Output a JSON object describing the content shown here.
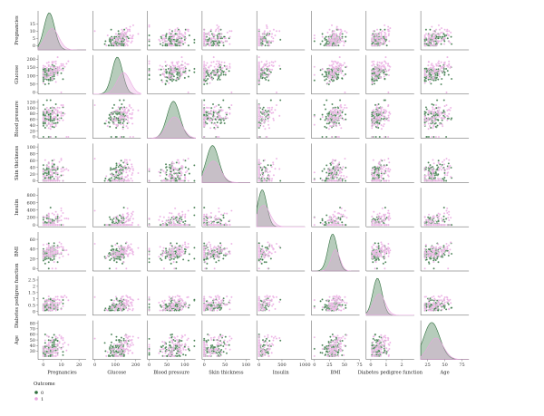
{
  "chart_data": {
    "type": "scatter",
    "kind": "pairplot",
    "variables": [
      "Pregnancies",
      "Glucose",
      "Blood pressure",
      "Skin thickness",
      "Insulin",
      "BMI",
      "Diabetes pedigree function",
      "Age"
    ],
    "ranges": [
      [
        -3,
        24
      ],
      [
        -10,
        225
      ],
      [
        -5,
        130
      ],
      [
        -5,
        110
      ],
      [
        -50,
        1000
      ],
      [
        -5,
        75
      ],
      [
        -0.3,
        2.8
      ],
      [
        15,
        85
      ]
    ],
    "ticks": [
      [
        0,
        10,
        20
      ],
      [
        0,
        100,
        200
      ],
      [
        0,
        50,
        100
      ],
      [
        0,
        50,
        100
      ],
      [
        0,
        500,
        1000
      ],
      [
        0,
        25,
        50,
        75
      ],
      [
        0,
        1,
        2
      ],
      [
        25,
        50,
        75
      ]
    ],
    "y_ticks": [
      [
        0,
        5,
        10,
        15
      ],
      [
        0,
        50,
        100,
        150,
        200
      ],
      [
        0,
        20,
        40,
        60,
        80,
        100,
        120
      ],
      [
        0,
        20,
        40,
        60,
        80,
        100
      ],
      [
        0,
        200,
        400,
        600,
        800
      ],
      [
        0,
        20,
        40,
        60
      ],
      [
        0.0,
        0.5,
        1.0,
        1.5,
        2.0,
        2.5
      ],
      [
        30,
        40,
        50,
        60,
        70,
        80
      ]
    ],
    "diagonal": "kde",
    "hue": "Outcome",
    "colors": {
      "0": "#2e6e3c",
      "1": "#e9a6e0"
    },
    "series": [
      {
        "name": "0",
        "means": [
          3.3,
          110,
          68,
          20,
          69,
          30.3,
          0.43,
          31
        ],
        "sds": [
          3.0,
          26,
          18,
          15,
          99,
          7.7,
          0.3,
          11.5
        ]
      },
      {
        "name": "1",
        "means": [
          4.9,
          141,
          71,
          22,
          100,
          35.1,
          0.55,
          37
        ],
        "sds": [
          3.7,
          32,
          21,
          17,
          139,
          7.2,
          0.37,
          11
        ]
      }
    ],
    "legend": {
      "title": "Outcome",
      "labels": [
        "0",
        "1"
      ],
      "placement": "bottom-left"
    }
  }
}
